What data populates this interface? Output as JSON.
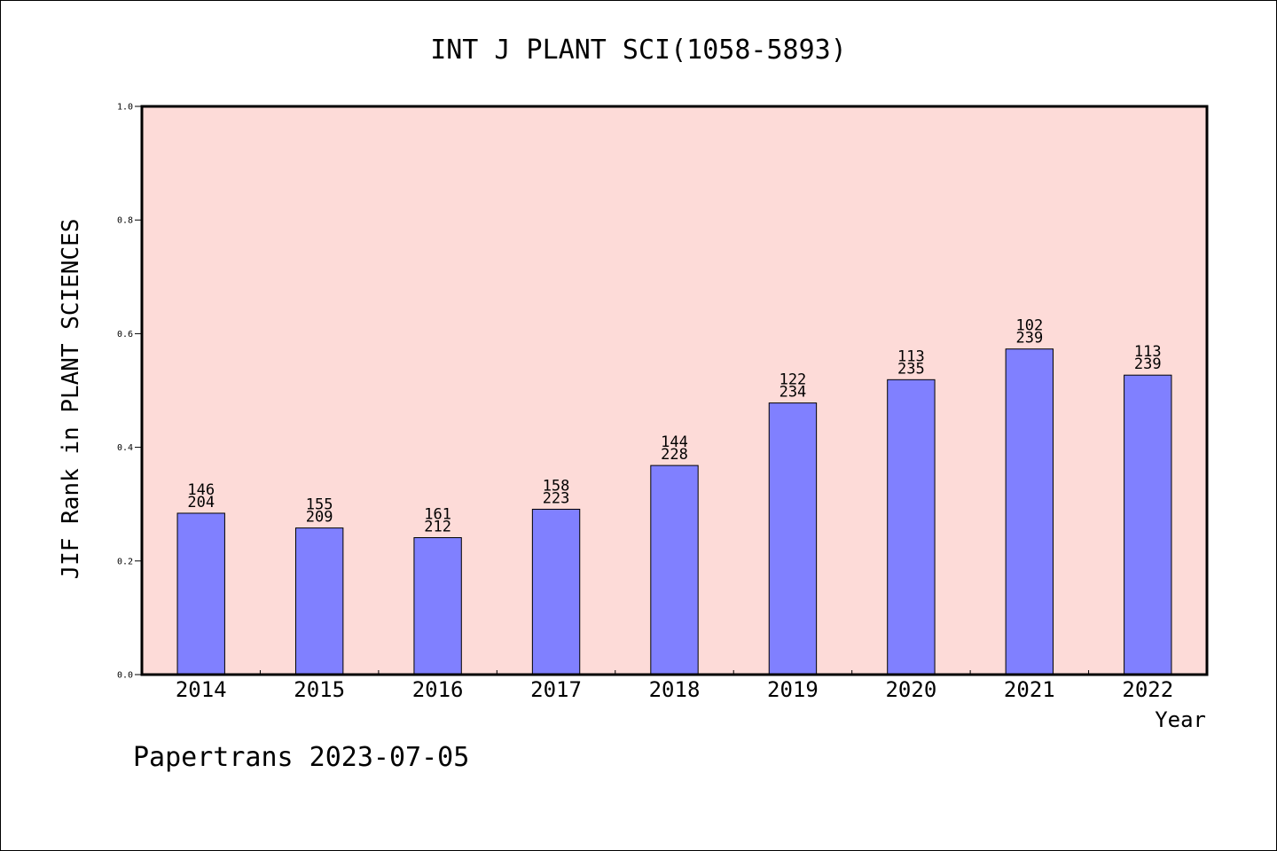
{
  "chart_data": {
    "type": "bar",
    "title": "INT J PLANT SCI(1058-5893)",
    "xlabel": "Year",
    "ylabel": "JIF Rank in PLANT SCIENCES",
    "ylim": [
      0,
      1.0
    ],
    "yticks": [
      "0.0",
      "0.2",
      "0.4",
      "0.6",
      "0.8",
      "1.0"
    ],
    "categories": [
      "2014",
      "2015",
      "2016",
      "2017",
      "2018",
      "2019",
      "2020",
      "2021",
      "2022"
    ],
    "values": [
      0.284,
      0.258,
      0.241,
      0.291,
      0.368,
      0.478,
      0.519,
      0.573,
      0.527
    ],
    "labels": [
      [
        "146",
        "204"
      ],
      [
        "155",
        "209"
      ],
      [
        "161",
        "212"
      ],
      [
        "158",
        "223"
      ],
      [
        "144",
        "228"
      ],
      [
        "122",
        "234"
      ],
      [
        "113",
        "235"
      ],
      [
        "102",
        "239"
      ],
      [
        "113",
        "239"
      ]
    ],
    "grid": false,
    "colors": {
      "bar": "#8080ff",
      "plot_bg": "#fddbd8",
      "axis": "#000000"
    }
  },
  "footer": {
    "text": "Papertrans 2023-07-05"
  }
}
